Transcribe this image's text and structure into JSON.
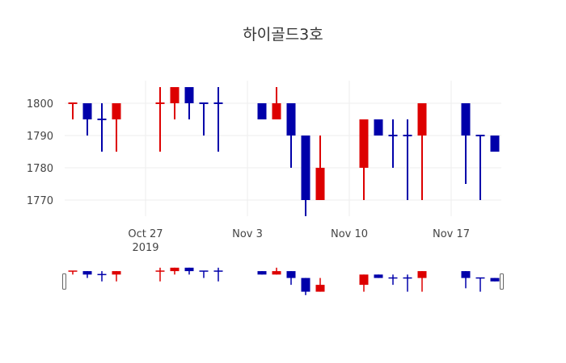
{
  "title": "하이골드3호",
  "colors": {
    "increasing": "#dd0000",
    "decreasing": "#0000aa",
    "grid": "#eeeeee"
  },
  "chart_data": {
    "type": "candlestick",
    "title": "하이골드3호",
    "xlabel": "",
    "ylabel": "",
    "ylim": [
      1763.5,
      1806
    ],
    "yticks": [
      1770,
      1780,
      1790,
      1800
    ],
    "xticks": [
      {
        "date": "2019-10-27",
        "label": "Oct 27",
        "sublabel": "2019"
      },
      {
        "date": "2019-11-03",
        "label": "Nov 3",
        "sublabel": ""
      },
      {
        "date": "2019-11-10",
        "label": "Nov 10",
        "sublabel": ""
      },
      {
        "date": "2019-11-17",
        "label": "Nov 17",
        "sublabel": ""
      }
    ],
    "grid": true,
    "rangeslider": true,
    "series": [
      {
        "date": "2019-10-22",
        "open": 1800,
        "high": 1800,
        "low": 1795,
        "close": 1800,
        "dir": "up"
      },
      {
        "date": "2019-10-23",
        "open": 1800,
        "high": 1800,
        "low": 1790,
        "close": 1795,
        "dir": "down"
      },
      {
        "date": "2019-10-24",
        "open": 1795,
        "high": 1800,
        "low": 1785,
        "close": 1795,
        "dir": "down"
      },
      {
        "date": "2019-10-25",
        "open": 1795,
        "high": 1800,
        "low": 1785,
        "close": 1800,
        "dir": "up"
      },
      {
        "date": "2019-10-28",
        "open": 1800,
        "high": 1805,
        "low": 1785,
        "close": 1800,
        "dir": "up"
      },
      {
        "date": "2019-10-29",
        "open": 1800,
        "high": 1805,
        "low": 1795,
        "close": 1805,
        "dir": "up"
      },
      {
        "date": "2019-10-30",
        "open": 1805,
        "high": 1805,
        "low": 1795,
        "close": 1800,
        "dir": "down"
      },
      {
        "date": "2019-10-31",
        "open": 1800,
        "high": 1800,
        "low": 1790,
        "close": 1800,
        "dir": "down"
      },
      {
        "date": "2019-11-01",
        "open": 1800,
        "high": 1805,
        "low": 1785,
        "close": 1800,
        "dir": "down"
      },
      {
        "date": "2019-11-04",
        "open": 1800,
        "high": 1800,
        "low": 1795,
        "close": 1795,
        "dir": "down"
      },
      {
        "date": "2019-11-05",
        "open": 1795,
        "high": 1805,
        "low": 1795,
        "close": 1800,
        "dir": "up"
      },
      {
        "date": "2019-11-06",
        "open": 1800,
        "high": 1800,
        "low": 1780,
        "close": 1790,
        "dir": "down"
      },
      {
        "date": "2019-11-07",
        "open": 1790,
        "high": 1790,
        "low": 1765,
        "close": 1770,
        "dir": "down"
      },
      {
        "date": "2019-11-08",
        "open": 1770,
        "high": 1790,
        "low": 1770,
        "close": 1780,
        "dir": "up"
      },
      {
        "date": "2019-11-11",
        "open": 1780,
        "high": 1795,
        "low": 1770,
        "close": 1795,
        "dir": "up"
      },
      {
        "date": "2019-11-12",
        "open": 1795,
        "high": 1795,
        "low": 1790,
        "close": 1790,
        "dir": "down"
      },
      {
        "date": "2019-11-13",
        "open": 1790,
        "high": 1795,
        "low": 1780,
        "close": 1790,
        "dir": "down"
      },
      {
        "date": "2019-11-14",
        "open": 1790,
        "high": 1795,
        "low": 1770,
        "close": 1790,
        "dir": "down"
      },
      {
        "date": "2019-11-15",
        "open": 1790,
        "high": 1800,
        "low": 1770,
        "close": 1800,
        "dir": "up"
      },
      {
        "date": "2019-11-18",
        "open": 1800,
        "high": 1800,
        "low": 1775,
        "close": 1790,
        "dir": "down"
      },
      {
        "date": "2019-11-19",
        "open": 1790,
        "high": 1790,
        "low": 1770,
        "close": 1790,
        "dir": "down"
      },
      {
        "date": "2019-11-20",
        "open": 1790,
        "high": 1790,
        "low": 1785,
        "close": 1785,
        "dir": "down"
      }
    ]
  }
}
